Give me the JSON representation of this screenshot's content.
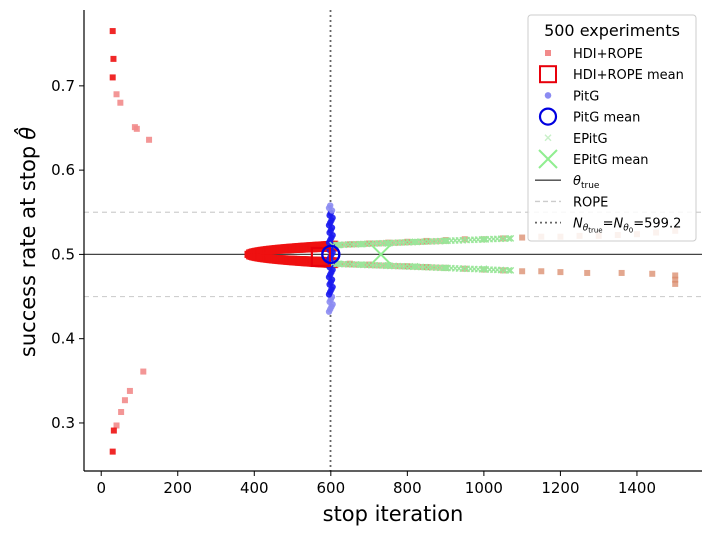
{
  "chart_data": {
    "type": "scatter",
    "xlabel": "stop iteration",
    "ylabel": "success rate at stop",
    "ylabel_symbol": "θ̂",
    "xlim": [
      -45,
      1570
    ],
    "ylim": [
      0.243,
      0.79
    ],
    "xticks": [
      0,
      200,
      400,
      600,
      800,
      1000,
      1200,
      1400
    ],
    "yticks": [
      0.3,
      0.4,
      0.5,
      0.6,
      0.7
    ],
    "ytick_labels": [
      "0.3",
      "0.4",
      "0.5",
      "0.6",
      "0.7"
    ],
    "theta_true": 0.5,
    "rope": [
      0.45,
      0.55
    ],
    "n_equal_x": 599.2,
    "legend": {
      "title": "500 experiments",
      "placement": "upper right",
      "entries": [
        {
          "label": "HDI+ROPE",
          "marker": "small-square",
          "color": "#f28b8b"
        },
        {
          "label": "HDI+ROPE mean",
          "marker": "open-square",
          "color": "#e8000b"
        },
        {
          "label": "PitG",
          "marker": "small-circle",
          "color": "#8b8bf2"
        },
        {
          "label": "PitG mean",
          "marker": "open-circle",
          "color": "#0000e0"
        },
        {
          "label": "EPitG",
          "marker": "small-x",
          "color": "#c8f0c8"
        },
        {
          "label": "EPitG mean",
          "marker": "large-x",
          "color": "#90ee90"
        },
        {
          "label": "θ",
          "sub": "true",
          "marker": "solid-line",
          "color": "#444444"
        },
        {
          "label": "ROPE",
          "marker": "dashed-line",
          "color": "#cccccc"
        },
        {
          "label": "N",
          "sub1": "θ",
          "sub2": "true",
          "eq": "=N",
          "sub3": "θ",
          "sub4": "0",
          "value": "=599.2",
          "marker": "dotted-line",
          "color": "#666666"
        }
      ]
    },
    "series": [
      {
        "name": "HDI+ROPE",
        "color": "#f28b8b",
        "outliers": [
          [
            30,
            0.765
          ],
          [
            32,
            0.732
          ],
          [
            30,
            0.71
          ],
          [
            40,
            0.69
          ],
          [
            50,
            0.68
          ],
          [
            88,
            0.651
          ],
          [
            93,
            0.649
          ],
          [
            125,
            0.636
          ],
          [
            110,
            0.361
          ],
          [
            75,
            0.338
          ],
          [
            62,
            0.327
          ],
          [
            52,
            0.313
          ],
          [
            40,
            0.297
          ],
          [
            33,
            0.291
          ],
          [
            30,
            0.266
          ]
        ],
        "upper_branch": [
          [
            610,
            0.511
          ],
          [
            650,
            0.512
          ],
          [
            700,
            0.513
          ],
          [
            750,
            0.514
          ],
          [
            800,
            0.515
          ],
          [
            850,
            0.516
          ],
          [
            900,
            0.517
          ],
          [
            950,
            0.518
          ],
          [
            1000,
            0.518
          ],
          [
            1050,
            0.519
          ],
          [
            1100,
            0.52
          ],
          [
            1150,
            0.521
          ],
          [
            1200,
            0.521
          ],
          [
            1250,
            0.522
          ],
          [
            1300,
            0.522
          ],
          [
            1350,
            0.523
          ],
          [
            1400,
            0.524
          ],
          [
            1450,
            0.526
          ],
          [
            1500,
            0.528
          ]
        ],
        "lower_branch": [
          [
            610,
            0.49
          ],
          [
            650,
            0.489
          ],
          [
            700,
            0.488
          ],
          [
            750,
            0.487
          ],
          [
            800,
            0.486
          ],
          [
            850,
            0.485
          ],
          [
            900,
            0.484
          ],
          [
            950,
            0.483
          ],
          [
            1000,
            0.482
          ],
          [
            1050,
            0.481
          ],
          [
            1100,
            0.48
          ],
          [
            1150,
            0.48
          ],
          [
            1200,
            0.479
          ],
          [
            1270,
            0.478
          ],
          [
            1360,
            0.478
          ],
          [
            1440,
            0.477
          ],
          [
            1500,
            0.475
          ],
          [
            1500,
            0.47
          ],
          [
            1500,
            0.465
          ]
        ]
      },
      {
        "name": "HDI+ROPE mean",
        "color": "#e8000b",
        "x": [
          574
        ],
        "y": [
          0.497
        ]
      },
      {
        "name": "PitG",
        "color": "#8b8bf2",
        "spread": [
          0.432,
          0.558
        ],
        "x_center": 600
      },
      {
        "name": "PitG mean",
        "color": "#0000e0",
        "x": [
          600
        ],
        "y": [
          0.5
        ]
      },
      {
        "name": "EPitG",
        "color": "#c8f0c8",
        "upper_branch": [
          [
            620,
            0.511
          ],
          [
            680,
            0.512
          ],
          [
            750,
            0.513
          ],
          [
            820,
            0.515
          ],
          [
            900,
            0.516
          ],
          [
            1000,
            0.518
          ],
          [
            1070,
            0.519
          ]
        ],
        "lower_branch": [
          [
            620,
            0.489
          ],
          [
            680,
            0.488
          ],
          [
            750,
            0.487
          ],
          [
            820,
            0.486
          ],
          [
            900,
            0.484
          ],
          [
            1000,
            0.483
          ],
          [
            1070,
            0.481
          ]
        ]
      },
      {
        "name": "EPitG mean",
        "color": "#90ee90",
        "x": [
          731
        ],
        "y": [
          0.5
        ]
      }
    ]
  }
}
